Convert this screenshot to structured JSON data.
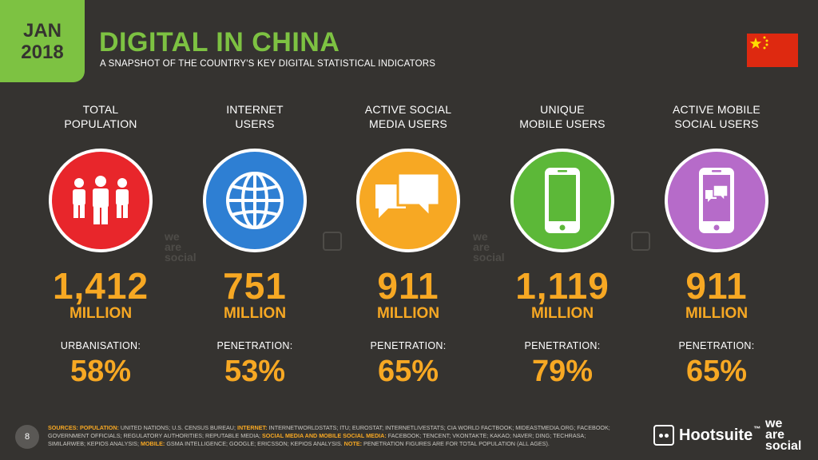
{
  "header": {
    "date_month": "JAN",
    "date_year": "2018",
    "title": "DIGITAL IN CHINA",
    "subtitle": "A SNAPSHOT OF THE COUNTRY'S KEY DIGITAL STATISTICAL INDICATORS"
  },
  "flag": {
    "icon": "china-flag-icon",
    "color": "#de2910",
    "star_color": "#ffde00"
  },
  "colors": {
    "background": "#353330",
    "accent_green": "#7dc242",
    "value_orange": "#f7a823",
    "red": "#e8262b",
    "blue": "#2e7fd3",
    "orange": "#f7a823",
    "green": "#5cb838",
    "purple": "#b66bc9"
  },
  "stats": [
    {
      "title_line1": "TOTAL",
      "title_line2": "POPULATION",
      "icon": "people-icon",
      "circle_color": "#e8262b",
      "value": "1,412",
      "unit": "MILLION",
      "metric_label": "URBANISATION:",
      "metric_value": "58%"
    },
    {
      "title_line1": "INTERNET",
      "title_line2": "USERS",
      "icon": "globe-icon",
      "circle_color": "#2e7fd3",
      "value": "751",
      "unit": "MILLION",
      "metric_label": "PENETRATION:",
      "metric_value": "53%"
    },
    {
      "title_line1": "ACTIVE SOCIAL",
      "title_line2": "MEDIA USERS",
      "icon": "chat-bubbles-icon",
      "circle_color": "#f7a823",
      "value": "911",
      "unit": "MILLION",
      "metric_label": "PENETRATION:",
      "metric_value": "65%"
    },
    {
      "title_line1": "UNIQUE",
      "title_line2": "MOBILE USERS",
      "icon": "mobile-phone-icon",
      "circle_color": "#5cb838",
      "value": "1,119",
      "unit": "MILLION",
      "metric_label": "PENETRATION:",
      "metric_value": "79%"
    },
    {
      "title_line1": "ACTIVE MOBILE",
      "title_line2": "SOCIAL USERS",
      "icon": "mobile-chat-icon",
      "circle_color": "#b66bc9",
      "value": "911",
      "unit": "MILLION",
      "metric_label": "PENETRATION:",
      "metric_value": "65%"
    }
  ],
  "watermarks": {
    "we": "we",
    "are": "are",
    "social": "social"
  },
  "footer": {
    "page_number": "8",
    "sources_key": "SOURCES:",
    "population_key": "POPULATION:",
    "population_text": " UNITED NATIONS; U.S. CENSUS BUREAU; ",
    "internet_key": "INTERNET:",
    "internet_text": " INTERNETWORLDSTATS; ITU; EUROSTAT; INTERNETLIVESTATS; CIA WORLD FACTBOOK; MIDEASTMEDIA.ORG; FACEBOOK; GOVERNMENT OFFICIALS; REGULATORY AUTHORITIES; REPUTABLE MEDIA; ",
    "social_key": "SOCIAL MEDIA AND MOBILE SOCIAL MEDIA:",
    "social_text": " FACEBOOK; TENCENT; VKONTAKTE; KAKAO; NAVER; DING; TECHRASA; SIMILARWEB; KEPIOS ANALYSIS; ",
    "mobile_key": "MOBILE:",
    "mobile_text": " GSMA INTELLIGENCE; GOOGLE; ERICSSON; KEPIOS ANALYSIS. ",
    "note_key": "NOTE:",
    "note_text": " PENETRATION FIGURES ARE FOR TOTAL POPULATION (ALL AGES).",
    "hootsuite_label": "Hootsuite",
    "hootsuite_tm": "™",
    "was_line1": "we",
    "was_line2": "are",
    "was_line3": "social"
  }
}
